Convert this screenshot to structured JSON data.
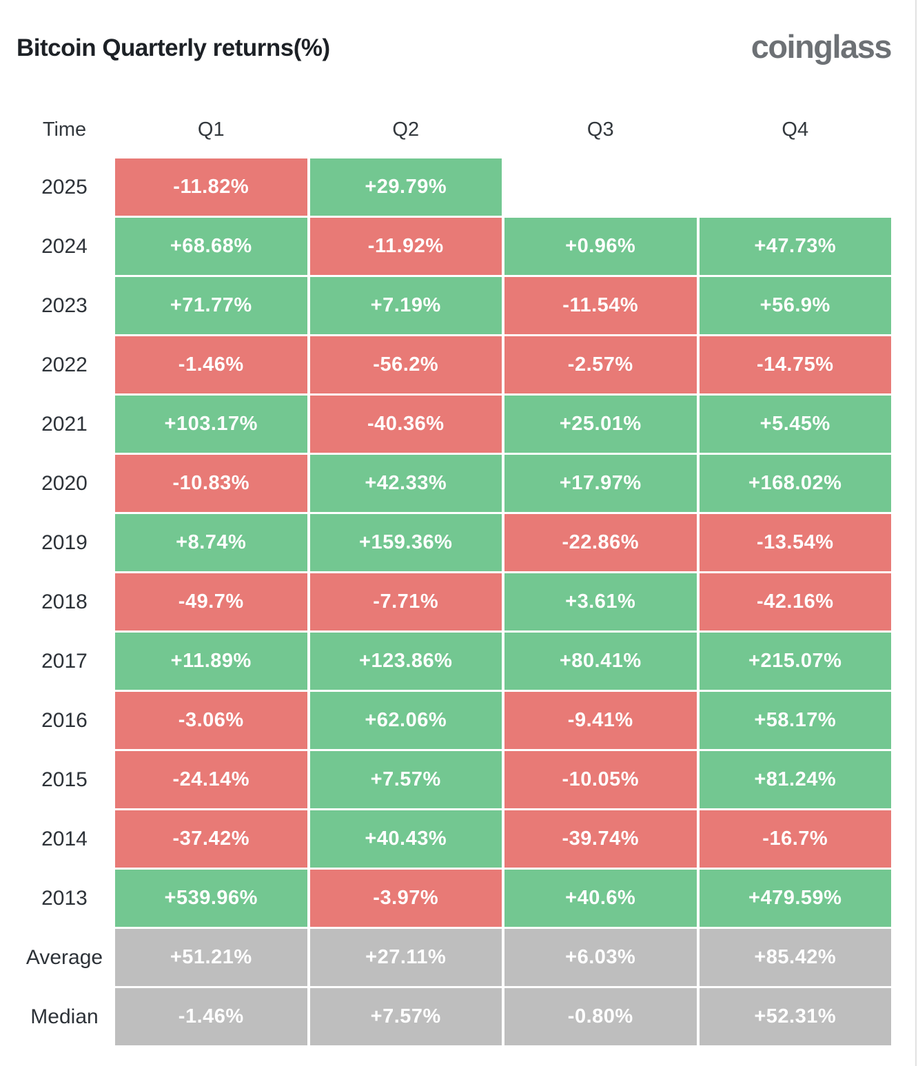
{
  "header": {
    "title": "Bitcoin Quarterly returns(%)",
    "logo": "coinglass"
  },
  "colors": {
    "positive": "#73c791",
    "negative": "#e87a76",
    "neutral": "#bebebe"
  },
  "table": {
    "column_headers": [
      "Time",
      "Q1",
      "Q2",
      "Q3",
      "Q4"
    ],
    "rows": [
      {
        "label": "2025",
        "cells": [
          {
            "text": "-11.82%",
            "tone": "negative"
          },
          {
            "text": "+29.79%",
            "tone": "positive"
          },
          {
            "text": "",
            "tone": "empty"
          },
          {
            "text": "",
            "tone": "empty"
          }
        ]
      },
      {
        "label": "2024",
        "cells": [
          {
            "text": "+68.68%",
            "tone": "positive"
          },
          {
            "text": "-11.92%",
            "tone": "negative"
          },
          {
            "text": "+0.96%",
            "tone": "positive"
          },
          {
            "text": "+47.73%",
            "tone": "positive"
          }
        ]
      },
      {
        "label": "2023",
        "cells": [
          {
            "text": "+71.77%",
            "tone": "positive"
          },
          {
            "text": "+7.19%",
            "tone": "positive"
          },
          {
            "text": "-11.54%",
            "tone": "negative"
          },
          {
            "text": "+56.9%",
            "tone": "positive"
          }
        ]
      },
      {
        "label": "2022",
        "cells": [
          {
            "text": "-1.46%",
            "tone": "negative"
          },
          {
            "text": "-56.2%",
            "tone": "negative"
          },
          {
            "text": "-2.57%",
            "tone": "negative"
          },
          {
            "text": "-14.75%",
            "tone": "negative"
          }
        ]
      },
      {
        "label": "2021",
        "cells": [
          {
            "text": "+103.17%",
            "tone": "positive"
          },
          {
            "text": "-40.36%",
            "tone": "negative"
          },
          {
            "text": "+25.01%",
            "tone": "positive"
          },
          {
            "text": "+5.45%",
            "tone": "positive"
          }
        ]
      },
      {
        "label": "2020",
        "cells": [
          {
            "text": "-10.83%",
            "tone": "negative"
          },
          {
            "text": "+42.33%",
            "tone": "positive"
          },
          {
            "text": "+17.97%",
            "tone": "positive"
          },
          {
            "text": "+168.02%",
            "tone": "positive"
          }
        ]
      },
      {
        "label": "2019",
        "cells": [
          {
            "text": "+8.74%",
            "tone": "positive"
          },
          {
            "text": "+159.36%",
            "tone": "positive"
          },
          {
            "text": "-22.86%",
            "tone": "negative"
          },
          {
            "text": "-13.54%",
            "tone": "negative"
          }
        ]
      },
      {
        "label": "2018",
        "cells": [
          {
            "text": "-49.7%",
            "tone": "negative"
          },
          {
            "text": "-7.71%",
            "tone": "negative"
          },
          {
            "text": "+3.61%",
            "tone": "positive"
          },
          {
            "text": "-42.16%",
            "tone": "negative"
          }
        ]
      },
      {
        "label": "2017",
        "cells": [
          {
            "text": "+11.89%",
            "tone": "positive"
          },
          {
            "text": "+123.86%",
            "tone": "positive"
          },
          {
            "text": "+80.41%",
            "tone": "positive"
          },
          {
            "text": "+215.07%",
            "tone": "positive"
          }
        ]
      },
      {
        "label": "2016",
        "cells": [
          {
            "text": "-3.06%",
            "tone": "negative"
          },
          {
            "text": "+62.06%",
            "tone": "positive"
          },
          {
            "text": "-9.41%",
            "tone": "negative"
          },
          {
            "text": "+58.17%",
            "tone": "positive"
          }
        ]
      },
      {
        "label": "2015",
        "cells": [
          {
            "text": "-24.14%",
            "tone": "negative"
          },
          {
            "text": "+7.57%",
            "tone": "positive"
          },
          {
            "text": "-10.05%",
            "tone": "negative"
          },
          {
            "text": "+81.24%",
            "tone": "positive"
          }
        ]
      },
      {
        "label": "2014",
        "cells": [
          {
            "text": "-37.42%",
            "tone": "negative"
          },
          {
            "text": "+40.43%",
            "tone": "positive"
          },
          {
            "text": "-39.74%",
            "tone": "negative"
          },
          {
            "text": "-16.7%",
            "tone": "negative"
          }
        ]
      },
      {
        "label": "2013",
        "cells": [
          {
            "text": "+539.96%",
            "tone": "positive"
          },
          {
            "text": "-3.97%",
            "tone": "negative"
          },
          {
            "text": "+40.6%",
            "tone": "positive"
          },
          {
            "text": "+479.59%",
            "tone": "positive"
          }
        ]
      },
      {
        "label": "Average",
        "cells": [
          {
            "text": "+51.21%",
            "tone": "neutral"
          },
          {
            "text": "+27.11%",
            "tone": "neutral"
          },
          {
            "text": "+6.03%",
            "tone": "neutral"
          },
          {
            "text": "+85.42%",
            "tone": "neutral"
          }
        ]
      },
      {
        "label": "Median",
        "cells": [
          {
            "text": "-1.46%",
            "tone": "neutral"
          },
          {
            "text": "+7.57%",
            "tone": "neutral"
          },
          {
            "text": "-0.80%",
            "tone": "neutral"
          },
          {
            "text": "+52.31%",
            "tone": "neutral"
          }
        ]
      }
    ]
  },
  "chart_data": {
    "type": "heatmap",
    "title": "Bitcoin Quarterly returns(%)",
    "x_categories": [
      "Q1",
      "Q2",
      "Q3",
      "Q4"
    ],
    "y_categories": [
      "2025",
      "2024",
      "2023",
      "2022",
      "2021",
      "2020",
      "2019",
      "2018",
      "2017",
      "2016",
      "2015",
      "2014",
      "2013",
      "Average",
      "Median"
    ],
    "values_pct": [
      [
        -11.82,
        29.79,
        null,
        null
      ],
      [
        68.68,
        -11.92,
        0.96,
        47.73
      ],
      [
        71.77,
        7.19,
        -11.54,
        56.9
      ],
      [
        -1.46,
        -56.2,
        -2.57,
        -14.75
      ],
      [
        103.17,
        -40.36,
        25.01,
        5.45
      ],
      [
        -10.83,
        42.33,
        17.97,
        168.02
      ],
      [
        8.74,
        159.36,
        -22.86,
        -13.54
      ],
      [
        -49.7,
        -7.71,
        3.61,
        -42.16
      ],
      [
        11.89,
        123.86,
        80.41,
        215.07
      ],
      [
        -3.06,
        62.06,
        -9.41,
        58.17
      ],
      [
        -24.14,
        7.57,
        -10.05,
        81.24
      ],
      [
        -37.42,
        40.43,
        -39.74,
        -16.7
      ],
      [
        539.96,
        -3.97,
        40.6,
        479.59
      ],
      [
        51.21,
        27.11,
        6.03,
        85.42
      ],
      [
        -1.46,
        7.57,
        -0.8,
        52.31
      ]
    ],
    "legend_position": "none",
    "grid": false,
    "color_rule": "green = positive return, red = negative return, gray = Average/Median summary rows"
  }
}
